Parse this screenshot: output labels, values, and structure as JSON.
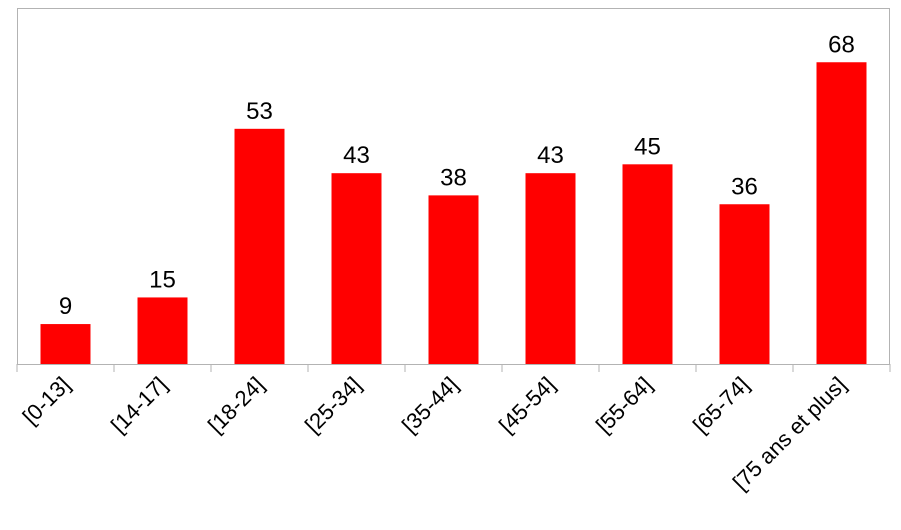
{
  "chart_data": {
    "type": "bar",
    "categories": [
      "[0-13]",
      "[14-17]",
      "[18-24]",
      "[25-34]",
      "[35-44]",
      "[45-54]",
      "[55-64]",
      "[65-74]",
      "[75 ans et plus]"
    ],
    "values": [
      9,
      15,
      53,
      43,
      38,
      43,
      45,
      36,
      68
    ],
    "value_labels": [
      "9",
      "15",
      "53",
      "43",
      "38",
      "43",
      "45",
      "36",
      "68"
    ],
    "ylim": [
      0,
      80
    ],
    "bar_color": "#ff0000",
    "grid": false,
    "legend": "none"
  }
}
